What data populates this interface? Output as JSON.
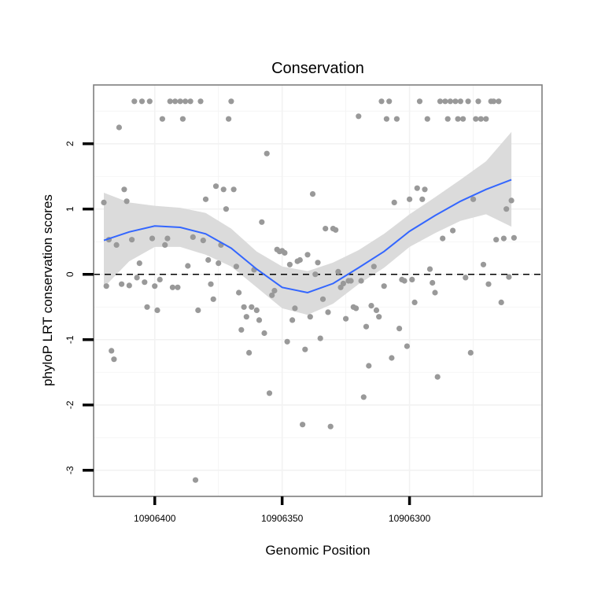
{
  "chart_data": {
    "type": "scatter",
    "title": "Conservation",
    "xlabel": "Genomic Position",
    "ylabel": "phyloP LRT conservation scores",
    "x_reversed": true,
    "xlim": [
      10906424,
      10906248
    ],
    "ylim": [
      -3.4,
      2.9
    ],
    "x_ticks": [
      10906400,
      10906350,
      10906300
    ],
    "x_tick_labels": [
      "10906400",
      "10906350",
      "10906300"
    ],
    "y_ticks": [
      -3,
      -2,
      -1,
      0,
      1,
      2
    ],
    "y_tick_labels": [
      "-3",
      "-2",
      "-1",
      "0",
      "1",
      "2"
    ],
    "grid": true,
    "reference_line": {
      "y": 0,
      "style": "dashed",
      "color": "#000000"
    },
    "colors": {
      "points": "#999999",
      "smooth": "#3366ff",
      "band": "#d9d9d9",
      "panel_border": "#7f7f7f",
      "grid": "#f2f2f2"
    },
    "series": [
      {
        "kind": "points",
        "points": [
          [
            10906420,
            1.1
          ],
          [
            10906419,
            -0.18
          ],
          [
            10906418,
            0.53
          ],
          [
            10906417,
            -1.17
          ],
          [
            10906416,
            -1.3
          ],
          [
            10906415,
            0.45
          ],
          [
            10906414,
            2.25
          ],
          [
            10906413,
            -0.15
          ],
          [
            10906412,
            1.3
          ],
          [
            10906411,
            1.12
          ],
          [
            10906410,
            -0.17
          ],
          [
            10906409,
            0.53
          ],
          [
            10906408,
            2.65
          ],
          [
            10906407,
            -0.05
          ],
          [
            10906406,
            0.17
          ],
          [
            10906405,
            2.65
          ],
          [
            10906404,
            -0.12
          ],
          [
            10906403,
            -0.5
          ],
          [
            10906402,
            2.65
          ],
          [
            10906401,
            0.55
          ],
          [
            10906400,
            -0.18
          ],
          [
            10906399,
            -0.55
          ],
          [
            10906398,
            -0.08
          ],
          [
            10906397,
            2.38
          ],
          [
            10906396,
            0.45
          ],
          [
            10906395,
            0.55
          ],
          [
            10906394,
            2.65
          ],
          [
            10906393,
            -0.2
          ],
          [
            10906392,
            2.65
          ],
          [
            10906391,
            -0.2
          ],
          [
            10906390,
            2.65
          ],
          [
            10906389,
            2.38
          ],
          [
            10906388,
            2.65
          ],
          [
            10906387,
            0.13
          ],
          [
            10906386,
            2.65
          ],
          [
            10906385,
            0.57
          ],
          [
            10906384,
            -3.15
          ],
          [
            10906383,
            -0.55
          ],
          [
            10906382,
            2.65
          ],
          [
            10906381,
            0.52
          ],
          [
            10906380,
            1.15
          ],
          [
            10906379,
            0.22
          ],
          [
            10906378,
            -0.15
          ],
          [
            10906377,
            -0.38
          ],
          [
            10906376,
            1.35
          ],
          [
            10906375,
            0.17
          ],
          [
            10906374,
            0.45
          ],
          [
            10906373,
            1.3
          ],
          [
            10906372,
            1.0
          ],
          [
            10906371,
            2.38
          ],
          [
            10906370,
            2.65
          ],
          [
            10906369,
            1.3
          ],
          [
            10906368,
            0.12
          ],
          [
            10906367,
            -0.28
          ],
          [
            10906366,
            -0.85
          ],
          [
            10906365,
            -0.5
          ],
          [
            10906364,
            -0.65
          ],
          [
            10906363,
            -1.2
          ],
          [
            10906362,
            -0.5
          ],
          [
            10906361,
            0.07
          ],
          [
            10906360,
            -0.55
          ],
          [
            10906359,
            -0.7
          ],
          [
            10906358,
            0.8
          ],
          [
            10906357,
            -0.9
          ],
          [
            10906356,
            1.85
          ],
          [
            10906355,
            -1.82
          ],
          [
            10906354,
            -0.32
          ],
          [
            10906353,
            -0.25
          ],
          [
            10906352,
            0.38
          ],
          [
            10906351,
            0.35
          ],
          [
            10906350,
            0.36
          ],
          [
            10906349,
            0.33
          ],
          [
            10906348,
            -1.03
          ],
          [
            10906347,
            0.15
          ],
          [
            10906346,
            -0.7
          ],
          [
            10906345,
            -0.52
          ],
          [
            10906344,
            0.2
          ],
          [
            10906343,
            0.22
          ],
          [
            10906342,
            -2.3
          ],
          [
            10906341,
            -1.15
          ],
          [
            10906340,
            0.3
          ],
          [
            10906339,
            -0.65
          ],
          [
            10906338,
            1.23
          ],
          [
            10906337,
            0.0
          ],
          [
            10906336,
            0.18
          ],
          [
            10906335,
            -0.98
          ],
          [
            10906334,
            -0.38
          ],
          [
            10906333,
            0.7
          ],
          [
            10906332,
            -0.58
          ],
          [
            10906331,
            -2.33
          ],
          [
            10906330,
            0.7
          ],
          [
            10906329,
            0.68
          ],
          [
            10906328,
            0.04
          ],
          [
            10906327,
            -0.2
          ],
          [
            10906326,
            -0.14
          ],
          [
            10906325,
            -0.68
          ],
          [
            10906324,
            -0.1
          ],
          [
            10906323,
            -0.1
          ],
          [
            10906322,
            -0.5
          ],
          [
            10906321,
            -0.52
          ],
          [
            10906320,
            2.42
          ],
          [
            10906319,
            -0.1
          ],
          [
            10906318,
            -1.88
          ],
          [
            10906317,
            -0.8
          ],
          [
            10906316,
            -1.4
          ],
          [
            10906315,
            -0.48
          ],
          [
            10906314,
            0.12
          ],
          [
            10906313,
            -0.55
          ],
          [
            10906312,
            -0.65
          ],
          [
            10906311,
            2.65
          ],
          [
            10906310,
            -0.18
          ],
          [
            10906309,
            2.38
          ],
          [
            10906308,
            2.65
          ],
          [
            10906307,
            -1.28
          ],
          [
            10906306,
            1.1
          ],
          [
            10906305,
            2.38
          ],
          [
            10906304,
            -0.83
          ],
          [
            10906303,
            -0.08
          ],
          [
            10906302,
            -0.1
          ],
          [
            10906301,
            -1.1
          ],
          [
            10906300,
            1.15
          ],
          [
            10906299,
            -0.08
          ],
          [
            10906298,
            -0.43
          ],
          [
            10906297,
            1.32
          ],
          [
            10906296,
            2.65
          ],
          [
            10906295,
            1.15
          ],
          [
            10906294,
            1.3
          ],
          [
            10906293,
            2.38
          ],
          [
            10906292,
            0.08
          ],
          [
            10906291,
            -0.13
          ],
          [
            10906290,
            -0.28
          ],
          [
            10906289,
            -1.57
          ],
          [
            10906288,
            2.65
          ],
          [
            10906287,
            0.55
          ],
          [
            10906286,
            2.65
          ],
          [
            10906285,
            2.38
          ],
          [
            10906284,
            2.65
          ],
          [
            10906283,
            0.67
          ],
          [
            10906282,
            2.65
          ],
          [
            10906281,
            2.38
          ],
          [
            10906280,
            2.65
          ],
          [
            10906279,
            2.38
          ],
          [
            10906278,
            -0.05
          ],
          [
            10906277,
            2.65
          ],
          [
            10906276,
            -1.2
          ],
          [
            10906275,
            1.15
          ],
          [
            10906274,
            2.38
          ],
          [
            10906273,
            2.65
          ],
          [
            10906272,
            2.38
          ],
          [
            10906271,
            0.15
          ],
          [
            10906270,
            2.38
          ],
          [
            10906269,
            -0.15
          ],
          [
            10906268,
            2.65
          ],
          [
            10906267,
            2.65
          ],
          [
            10906266,
            0.53
          ],
          [
            10906265,
            2.65
          ],
          [
            10906264,
            -0.43
          ],
          [
            10906263,
            0.55
          ],
          [
            10906262,
            1.0
          ],
          [
            10906261,
            -0.04
          ],
          [
            10906260,
            1.13
          ],
          [
            10906259,
            0.56
          ]
        ]
      },
      {
        "kind": "smooth",
        "x": [
          10906420,
          10906410,
          10906400,
          10906390,
          10906380,
          10906370,
          10906360,
          10906350,
          10906340,
          10906330,
          10906320,
          10906310,
          10906300,
          10906290,
          10906280,
          10906270,
          10906260
        ],
        "y": [
          0.52,
          0.65,
          0.74,
          0.72,
          0.62,
          0.4,
          0.08,
          -0.2,
          -0.28,
          -0.14,
          0.1,
          0.35,
          0.66,
          0.9,
          1.12,
          1.3,
          1.45
        ],
        "lower": [
          -0.2,
          0.2,
          0.42,
          0.42,
          0.3,
          0.12,
          -0.2,
          -0.52,
          -0.62,
          -0.45,
          -0.15,
          0.1,
          0.42,
          0.63,
          0.82,
          0.92,
          0.73
        ],
        "upper": [
          1.25,
          1.1,
          1.05,
          1.02,
          0.94,
          0.7,
          0.35,
          0.12,
          0.05,
          0.18,
          0.37,
          0.62,
          0.92,
          1.18,
          1.45,
          1.73,
          2.18
        ]
      }
    ]
  }
}
